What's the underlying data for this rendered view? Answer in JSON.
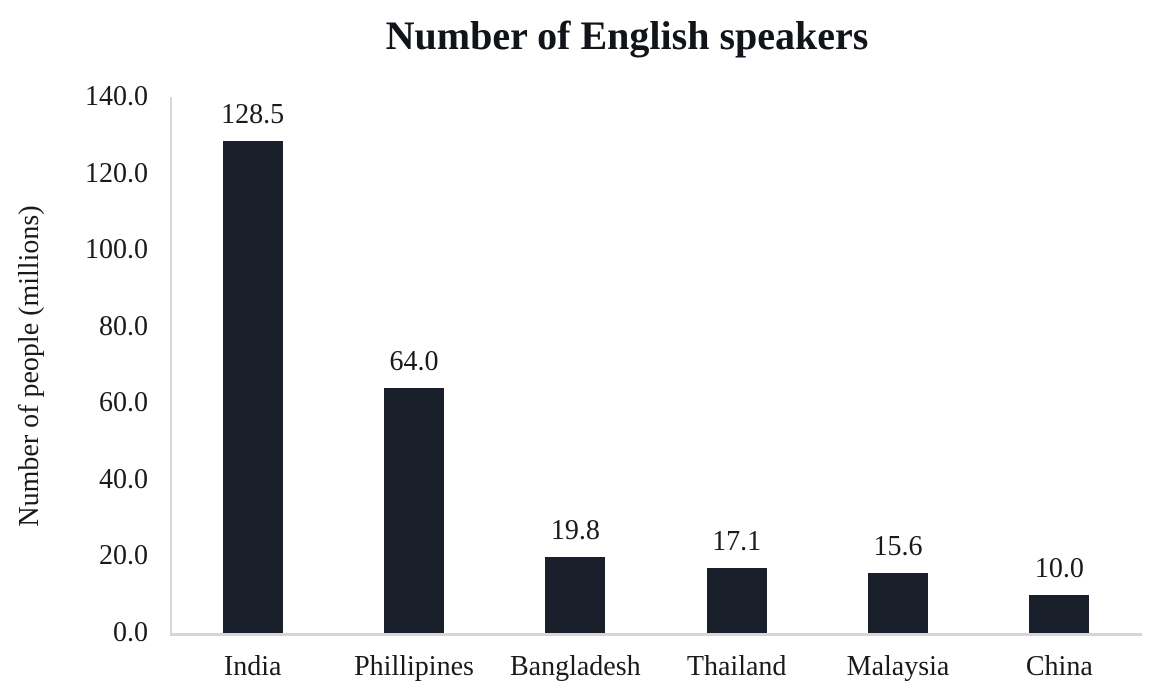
{
  "chart_data": {
    "type": "bar",
    "title": "Number of English speakers",
    "categories": [
      "India",
      "Phillipines",
      "Bangladesh",
      "Thailand",
      "Malaysia",
      "China"
    ],
    "values": [
      128.5,
      64.0,
      19.8,
      17.1,
      15.6,
      10.0
    ],
    "data_labels": [
      "128.5",
      "64.0",
      "19.8",
      "17.1",
      "15.6",
      "10.0"
    ],
    "xlabel": "",
    "ylabel": "Number of people (millions)",
    "ylim": [
      0,
      140
    ],
    "ytick_step": 20,
    "yticks": [
      "140.0",
      "120.0",
      "100.0",
      "80.0",
      "60.0",
      "40.0",
      "20.0",
      "0.0"
    ],
    "grid": false,
    "legend_position": "none",
    "bar_color": "#1a202b",
    "axis_color": "#d6d6d6",
    "text_color": "#1a1a1a",
    "background_color": "#ffffff"
  }
}
